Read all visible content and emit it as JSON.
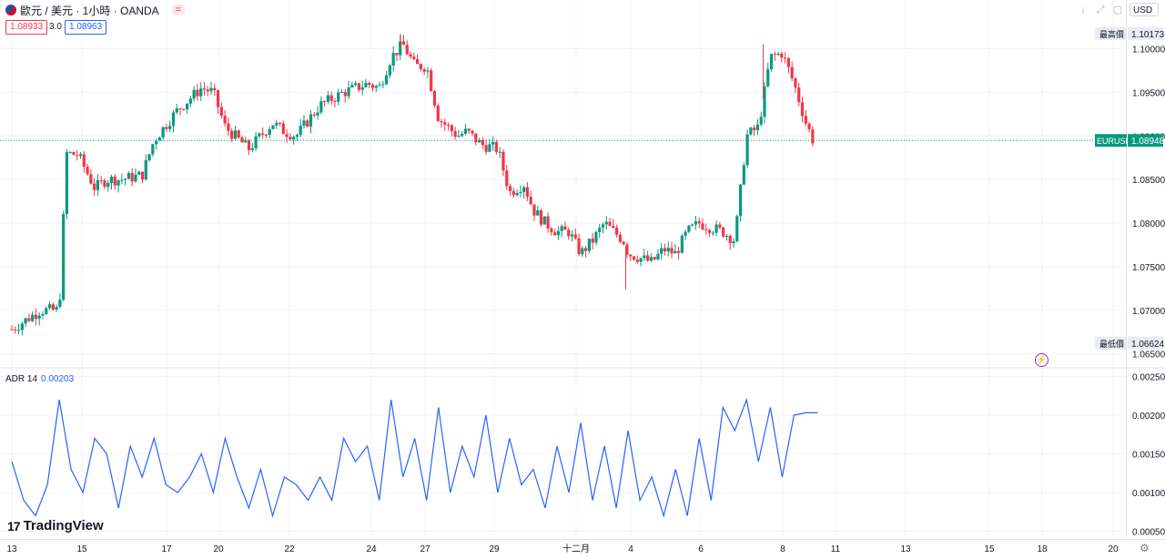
{
  "header": {
    "symbol_title": "歐元 / 美元 · 1小時 · OANDA",
    "bid": "1.08933",
    "spread": "3.0",
    "ask": "1.08963",
    "currency": "USD",
    "compare_icon": "equals-badge-icon"
  },
  "colors": {
    "up": "#089981",
    "down": "#f23645",
    "indicator": "#2962ff",
    "grid": "#f0f3fa"
  },
  "chart_data": [
    {
      "type": "candlestick",
      "symbol": "EURUSD",
      "interval": "1小時",
      "ylim": [
        1.0635,
        1.1035
      ],
      "price_ticks": [
        "1.10000",
        "1.09500",
        "1.09000",
        "1.08500",
        "1.08000",
        "1.07500",
        "1.07000",
        "1.06500"
      ],
      "x_ticks": [
        "13",
        "15",
        "17",
        "20",
        "22",
        "24",
        "27",
        "29",
        "十二月",
        "4",
        "6",
        "8",
        "11",
        "13",
        "15",
        "18",
        "20"
      ],
      "high_label": {
        "text": "最高價",
        "value": "1.10173"
      },
      "low_label": {
        "text": "最低價",
        "value": "1.06624"
      },
      "last_price": {
        "symbol": "EURUSD",
        "value": "1.08948"
      },
      "close_path": [
        [
          13,
          1.0678
        ],
        [
          14.2,
          1.07
        ],
        [
          15,
          1.07
        ],
        [
          15.3,
          1.088
        ],
        [
          15.8,
          1.0878
        ],
        [
          16.5,
          1.084
        ],
        [
          17,
          1.085
        ],
        [
          17.6,
          1.085
        ],
        [
          18.5,
          1.0855
        ],
        [
          19,
          1.0895
        ],
        [
          20,
          1.093
        ],
        [
          21,
          1.0955
        ],
        [
          21.5,
          1.095
        ],
        [
          22,
          1.091
        ],
        [
          23,
          1.0885
        ],
        [
          23.5,
          1.09
        ],
        [
          24,
          1.0915
        ],
        [
          24.5,
          1.0905
        ],
        [
          25,
          1.09
        ],
        [
          26,
          1.0935
        ],
        [
          27,
          1.095
        ],
        [
          28,
          1.096
        ],
        [
          28.5,
          1.0955
        ],
        [
          29,
          1.099
        ],
        [
          29.5,
          1.1005
        ],
        [
          30,
          1.098
        ],
        [
          30.5,
          1.098
        ],
        [
          31,
          1.092
        ],
        [
          31.8,
          1.09
        ],
        [
          32.2,
          1.0905
        ],
        [
          32.8,
          1.089
        ],
        [
          33.5,
          1.0885
        ],
        [
          34,
          1.0835
        ],
        [
          34.6,
          1.0845
        ],
        [
          35,
          1.0815
        ],
        [
          35.5,
          1.08
        ],
        [
          36,
          1.079
        ],
        [
          36.5,
          1.079
        ],
        [
          37,
          1.0765
        ],
        [
          37.5,
          1.078
        ],
        [
          38,
          1.08
        ],
        [
          38.8,
          1.078
        ],
        [
          39,
          1.0765
        ],
        [
          39.5,
          1.076
        ],
        [
          40,
          1.0755
        ],
        [
          40.5,
          1.077
        ],
        [
          41,
          1.0765
        ],
        [
          41.5,
          1.079
        ],
        [
          42,
          1.08
        ],
        [
          43,
          1.079
        ],
        [
          43.5,
          1.078
        ],
        [
          44,
          1.09
        ],
        [
          44.5,
          1.091
        ],
        [
          45,
          1.099
        ],
        [
          45.5,
          1.0995
        ],
        [
          46,
          1.096
        ],
        [
          46.5,
          1.0915
        ],
        [
          46.8,
          1.0895
        ]
      ],
      "wick_extremes": [
        [
          29.4,
          1.1017
        ],
        [
          38.9,
          1.0724
        ],
        [
          44.7,
          1.1005
        ]
      ]
    },
    {
      "type": "line",
      "name": "ADR 14",
      "last_value": "0.00203",
      "ylim": [
        0.0004,
        0.0026
      ],
      "y_ticks": [
        "0.00250",
        "0.00200",
        "0.00150",
        "0.00100",
        "0.00050"
      ],
      "x": [
        13,
        13.5,
        14,
        14.5,
        15,
        15.5,
        16,
        16.5,
        17,
        17.5,
        18,
        18.5,
        19,
        19.5,
        20,
        20.5,
        21,
        21.5,
        22,
        22.5,
        23,
        23.5,
        24,
        24.5,
        25,
        25.5,
        26,
        26.5,
        27,
        27.5,
        28,
        28.5,
        29,
        29.5,
        30,
        30.5,
        31,
        31.5,
        32,
        32.5,
        33,
        33.5,
        34,
        34.5,
        35,
        35.5,
        36,
        36.5,
        37,
        37.5,
        38,
        38.5,
        39,
        39.5,
        40,
        40.5,
        41,
        41.5,
        42,
        42.5,
        43,
        43.5,
        44,
        44.5,
        45,
        45.5,
        46,
        46.5,
        47
      ],
      "values": [
        0.0014,
        0.0009,
        0.0007,
        0.0011,
        0.0022,
        0.0013,
        0.001,
        0.0017,
        0.0015,
        0.0008,
        0.0016,
        0.0012,
        0.0017,
        0.0011,
        0.001,
        0.0012,
        0.0015,
        0.001,
        0.0017,
        0.0012,
        0.0008,
        0.0013,
        0.0007,
        0.0012,
        0.0011,
        0.0009,
        0.0012,
        0.0009,
        0.0017,
        0.0014,
        0.0016,
        0.0009,
        0.0022,
        0.0012,
        0.0017,
        0.0009,
        0.0021,
        0.001,
        0.0016,
        0.0012,
        0.002,
        0.001,
        0.0017,
        0.0011,
        0.0013,
        0.0008,
        0.0016,
        0.001,
        0.0019,
        0.0009,
        0.0016,
        0.0008,
        0.0018,
        0.0009,
        0.0012,
        0.0007,
        0.0013,
        0.0007,
        0.0017,
        0.0009,
        0.0021,
        0.0018,
        0.0022,
        0.0014,
        0.0021,
        0.0012,
        0.002,
        0.00203,
        0.00203
      ]
    }
  ],
  "logo": {
    "mark": "17",
    "text": "TradingView"
  }
}
